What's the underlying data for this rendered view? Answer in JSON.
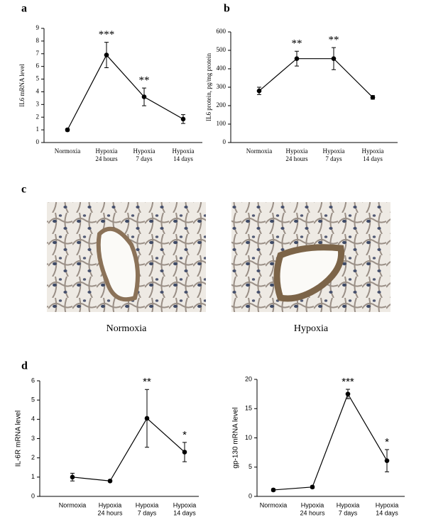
{
  "panel_labels": [
    "a",
    "b",
    "c",
    "d"
  ],
  "image_captions": [
    "Normoxia",
    "Hypoxia"
  ],
  "chart_data": [
    {
      "type": "line",
      "ylabel": "IL6 mRNA level",
      "categories": [
        [
          "Normoxia"
        ],
        [
          "Hypoxia",
          "24 hours"
        ],
        [
          "Hypoxia",
          "7 days"
        ],
        [
          "Hypoxia",
          "14 days"
        ]
      ],
      "values": [
        1.0,
        6.9,
        3.6,
        1.85
      ],
      "errors": [
        0.1,
        1.0,
        0.7,
        0.35
      ],
      "annotations": [
        null,
        "***",
        "**",
        null
      ],
      "color": "#000000",
      "ylim": [
        0,
        9
      ],
      "yticks": [
        0,
        1,
        2,
        3,
        4,
        5,
        6,
        7,
        8,
        9
      ]
    },
    {
      "type": "line",
      "ylabel": "IL6 protein, pg/mg protein",
      "categories": [
        [
          "Normoxia"
        ],
        [
          "Hypoxia",
          "24 hours"
        ],
        [
          "Hypoxia",
          "7 days"
        ],
        [
          "Hypoxia",
          "14 days"
        ]
      ],
      "values": [
        280,
        455,
        455,
        245
      ],
      "errors": [
        20,
        40,
        60,
        10
      ],
      "annotations": [
        null,
        "**",
        "**",
        null
      ],
      "color": "#000000",
      "ylim": [
        0,
        600
      ],
      "yticks": [
        0,
        100,
        200,
        300,
        400,
        500,
        600
      ]
    },
    {
      "type": "line",
      "ylabel": "IL-6R mRNA level",
      "categories": [
        [
          "Normoxia"
        ],
        [
          "Hypoxia",
          "24 hours"
        ],
        [
          "Hypoxia",
          "7 days"
        ],
        [
          "Hypoxia",
          "14 days"
        ]
      ],
      "values": [
        1.0,
        0.8,
        4.05,
        2.3
      ],
      "errors": [
        0.2,
        0.05,
        1.5,
        0.5
      ],
      "annotations": [
        null,
        null,
        "**",
        "*"
      ],
      "color": "#000000",
      "ylim": [
        0,
        6
      ],
      "yticks": [
        0,
        1,
        2,
        3,
        4,
        5,
        6
      ]
    },
    {
      "type": "line",
      "ylabel": "gp-130 mRNA level",
      "categories": [
        [
          "Normoxia"
        ],
        [
          "Hypoxia",
          "24 hours"
        ],
        [
          "Hypoxia",
          "7 days"
        ],
        [
          "Hypoxia",
          "14 days"
        ]
      ],
      "values": [
        1.1,
        1.6,
        17.5,
        6.1
      ],
      "errors": [
        0.2,
        0.2,
        0.8,
        1.9
      ],
      "annotations": [
        null,
        null,
        "***",
        "*"
      ],
      "color": "#000000",
      "ylim": [
        0,
        20
      ],
      "yticks": [
        0,
        5,
        10,
        15,
        20
      ]
    }
  ]
}
